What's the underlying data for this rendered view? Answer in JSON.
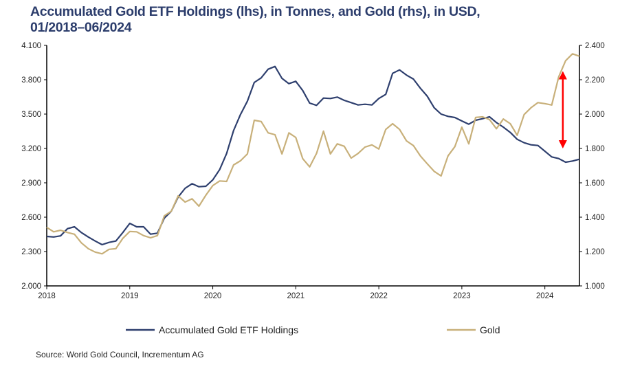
{
  "chart_data": {
    "type": "line",
    "title_line1": "Accumulated Gold ETF Holdings (lhs), in Tonnes, and Gold (rhs), in USD,",
    "title_line2": "01/2018–06/2024",
    "x_start": "2018-01",
    "x_end": "2024-06",
    "frequency": "monthly",
    "x_tick_labels": [
      "2018",
      "2019",
      "2020",
      "2021",
      "2022",
      "2023",
      "2024"
    ],
    "y_left": {
      "ylim": [
        2000,
        4100
      ],
      "ticks": [
        2000,
        2300,
        2600,
        2900,
        3200,
        3500,
        3800,
        4100
      ],
      "tick_labels": [
        "2.000",
        "2.300",
        "2.600",
        "2.900",
        "3.200",
        "3.500",
        "3.800",
        "4.100"
      ]
    },
    "y_right": {
      "ylim": [
        1000,
        2400
      ],
      "ticks": [
        1000,
        1200,
        1400,
        1600,
        1800,
        2000,
        2200,
        2400
      ],
      "tick_labels": [
        "1.000",
        "1.200",
        "1.400",
        "1.600",
        "1.800",
        "2.000",
        "2.200",
        "2.400"
      ]
    },
    "series": [
      {
        "name": "Accumulated Gold ETF Holdings",
        "axis": "left",
        "color": "#2e3f6e",
        "values": [
          2432,
          2427,
          2437,
          2500,
          2516,
          2466,
          2427,
          2392,
          2360,
          2380,
          2392,
          2466,
          2546,
          2516,
          2516,
          2452,
          2460,
          2592,
          2652,
          2776,
          2852,
          2892,
          2866,
          2870,
          2926,
          3016,
          3156,
          3356,
          3496,
          3612,
          3776,
          3816,
          3892,
          3916,
          3812,
          3766,
          3786,
          3706,
          3596,
          3576,
          3640,
          3636,
          3648,
          3620,
          3600,
          3580,
          3586,
          3580,
          3636,
          3672,
          3856,
          3886,
          3840,
          3806,
          3726,
          3656,
          3556,
          3500,
          3480,
          3470,
          3440,
          3412,
          3446,
          3460,
          3476,
          3426,
          3386,
          3340,
          3280,
          3250,
          3232,
          3226,
          3176,
          3126,
          3112,
          3080,
          3090,
          3106
        ]
      },
      {
        "name": "Gold",
        "axis": "right",
        "color": "#c8b07a",
        "values": [
          1341,
          1315,
          1324,
          1311,
          1301,
          1251,
          1217,
          1197,
          1187,
          1213,
          1217,
          1277,
          1317,
          1315,
          1293,
          1280,
          1293,
          1408,
          1435,
          1524,
          1488,
          1507,
          1464,
          1528,
          1584,
          1611,
          1608,
          1704,
          1728,
          1768,
          1964,
          1957,
          1891,
          1880,
          1768,
          1891,
          1864,
          1741,
          1693,
          1771,
          1901,
          1768,
          1827,
          1813,
          1744,
          1771,
          1808,
          1821,
          1797,
          1911,
          1944,
          1911,
          1844,
          1817,
          1757,
          1711,
          1667,
          1640,
          1757,
          1811,
          1924,
          1827,
          1981,
          1984,
          1968,
          1915,
          1971,
          1944,
          1877,
          1997,
          2037,
          2067,
          2061,
          2053,
          2217,
          2311,
          2351,
          2337
        ]
      }
    ],
    "annotation": {
      "type": "double-arrow",
      "color": "#ff0000",
      "x_month": "2024-03",
      "from_right_value": 1800,
      "to_right_value": 2250
    },
    "legend_position": "bottom",
    "source": "Source: World Gold Council, Incrementum AG"
  }
}
